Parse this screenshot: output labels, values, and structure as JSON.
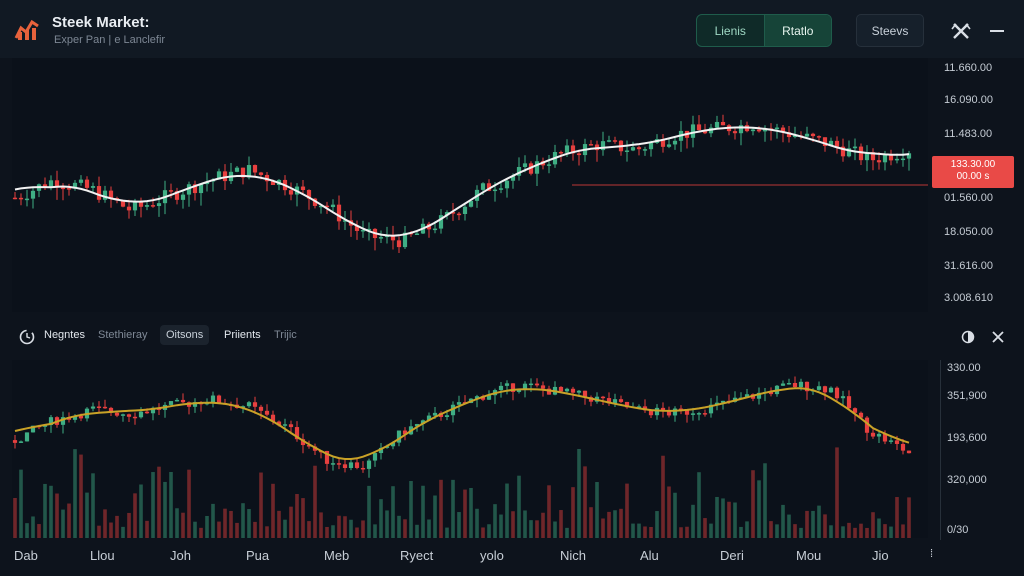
{
  "header": {
    "title": "Steek Market:",
    "subtitle": "Exper Pan | e Lanclefir",
    "segment_left": "Lienis",
    "segment_right": "Rtatlo",
    "steevs_button": "Steevs"
  },
  "main_axis": {
    "ticks": [
      "11.660.00",
      "16.090.00",
      "11.483.00",
      "01.560.00",
      "18.050.00",
      "31.616.00",
      "3.008.610"
    ],
    "price_tag_line1": "133.30.00",
    "price_tag_line2": "00.00 s"
  },
  "toolbar2": {
    "items": [
      "Negntes",
      "Stethieray",
      "Oitsons",
      "Priients",
      "Trijic"
    ]
  },
  "sub_axis": {
    "ticks": [
      "330.00",
      "351,900",
      "193,600",
      "320,000",
      "0/30"
    ]
  },
  "x_axis": {
    "labels": [
      "Dab",
      "Llou",
      "Joh",
      "Pua",
      "Meb",
      "Ryect",
      "yolo",
      "Nich",
      "Alu",
      "Deri",
      "Mou",
      "Jio"
    ]
  },
  "colors": {
    "up": "#3fae84",
    "down": "#e8403f",
    "ma_main": "#f2f2f2",
    "ma_sub": "#c9a227",
    "accent": "#1f5c4b"
  },
  "chart_data": {
    "type": "candlestick",
    "main_series_levels": [
      0.45,
      0.52,
      0.48,
      0.4,
      0.46,
      0.52,
      0.56,
      0.5,
      0.42,
      0.3,
      0.28,
      0.36,
      0.48,
      0.55,
      0.62,
      0.66,
      0.64,
      0.7,
      0.72,
      0.74,
      0.7,
      0.66,
      0.6,
      0.64
    ],
    "sub_series_levels": [
      0.55,
      0.66,
      0.72,
      0.7,
      0.74,
      0.78,
      0.74,
      0.62,
      0.44,
      0.4,
      0.6,
      0.7,
      0.8,
      0.86,
      0.82,
      0.78,
      0.72,
      0.7,
      0.74,
      0.8,
      0.86,
      0.84,
      0.6,
      0.48
    ]
  }
}
